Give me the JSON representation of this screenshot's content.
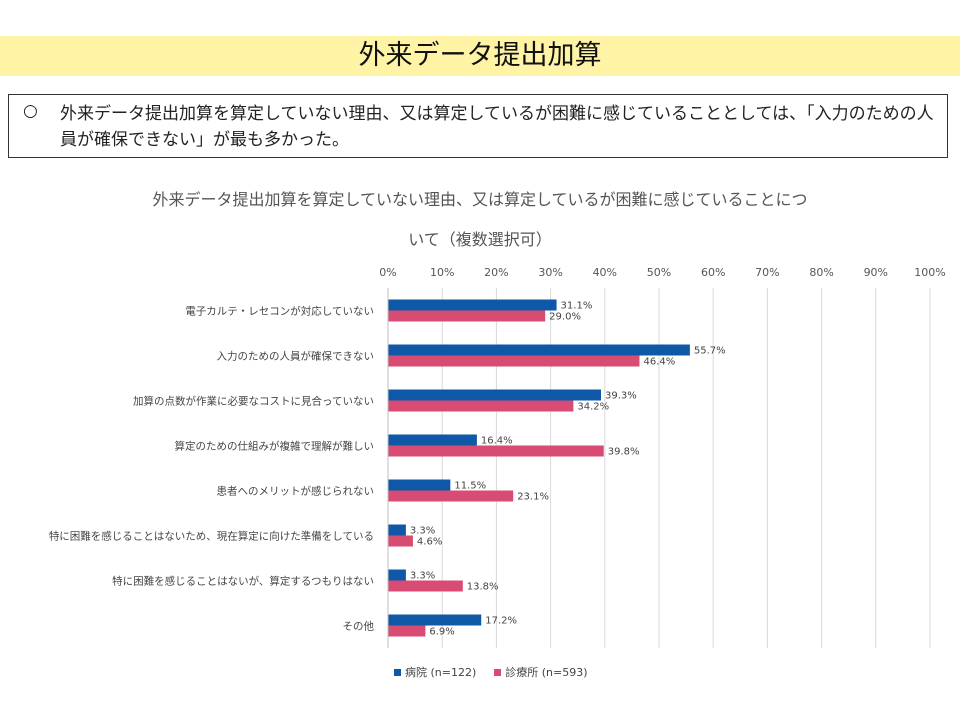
{
  "header": {
    "title": "外来データ提出加算"
  },
  "summary": {
    "bullet": "○",
    "text": "外来データ提出加算を算定していない理由、又は算定しているが困難に感じていることとしては、「入力のための人員が確保できない」が最も多かった。"
  },
  "chart_data": {
    "type": "bar",
    "orientation": "horizontal",
    "title": "外来データ提出加算を算定していない理由、又は算定しているが困難に感じていることにつ",
    "title_line2": "いて（複数選択可）",
    "categories": [
      "電子カルテ・レセコンが対応していない",
      "入力のための人員が確保できない",
      "加算の点数が作業に必要なコストに見合っていない",
      "算定のための仕組みが複雑で理解が難しい",
      "患者へのメリットが感じられない",
      "特に困難を感じることはないため、現在算定に向けた準備をしている",
      "特に困難を感じることはないが、算定するつもりはない",
      "その他"
    ],
    "series": [
      {
        "name": "病院 (n=122)",
        "color": "#0f58a8",
        "values": [
          31.1,
          55.7,
          39.3,
          16.4,
          11.5,
          3.3,
          3.3,
          17.2
        ],
        "labels": [
          "31.1%",
          "55.7%",
          "39.3%",
          "16.4%",
          "11.5%",
          "3.3%",
          "3.3%",
          "17.2%"
        ]
      },
      {
        "name": "診療所 (n=593)",
        "color": "#d84b72",
        "values": [
          29.0,
          46.4,
          34.2,
          39.8,
          23.1,
          4.6,
          13.8,
          6.9
        ],
        "labels": [
          "29.0%",
          "46.4%",
          "34.2%",
          "39.8%",
          "23.1%",
          "4.6%",
          "13.8%",
          "6.9%"
        ]
      }
    ],
    "xlim": [
      0,
      100
    ],
    "xticks": [
      "0%",
      "10%",
      "20%",
      "30%",
      "40%",
      "50%",
      "60%",
      "70%",
      "80%",
      "90%",
      "100%"
    ],
    "grid": true,
    "legend": "bottom"
  }
}
